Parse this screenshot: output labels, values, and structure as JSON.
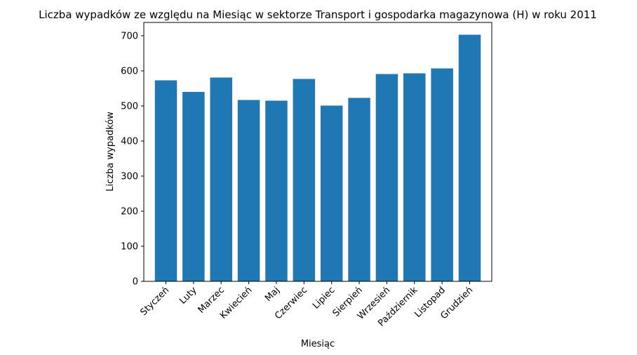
{
  "chart_data": {
    "type": "bar",
    "title": "Liczba wypadków ze względu na Miesiąc w sektorze Transport i gospodarka magazynowa (H) w roku 2011",
    "xlabel": "Miesiąc",
    "ylabel": "Liczba wypadków",
    "categories": [
      "Styczeń",
      "Luty",
      "Marzec",
      "Kwiecień",
      "Maj",
      "Czerwiec",
      "Lipiec",
      "Sierpień",
      "Wrzesień",
      "Październik",
      "Listopad",
      "Grudzień"
    ],
    "values": [
      573,
      540,
      581,
      517,
      515,
      577,
      501,
      523,
      591,
      593,
      607,
      703
    ],
    "ylim": [
      0,
      738
    ],
    "yticks": [
      0,
      100,
      200,
      300,
      400,
      500,
      600,
      700
    ],
    "bar_color": "#1f77b4",
    "grid": false,
    "legend": "none"
  }
}
